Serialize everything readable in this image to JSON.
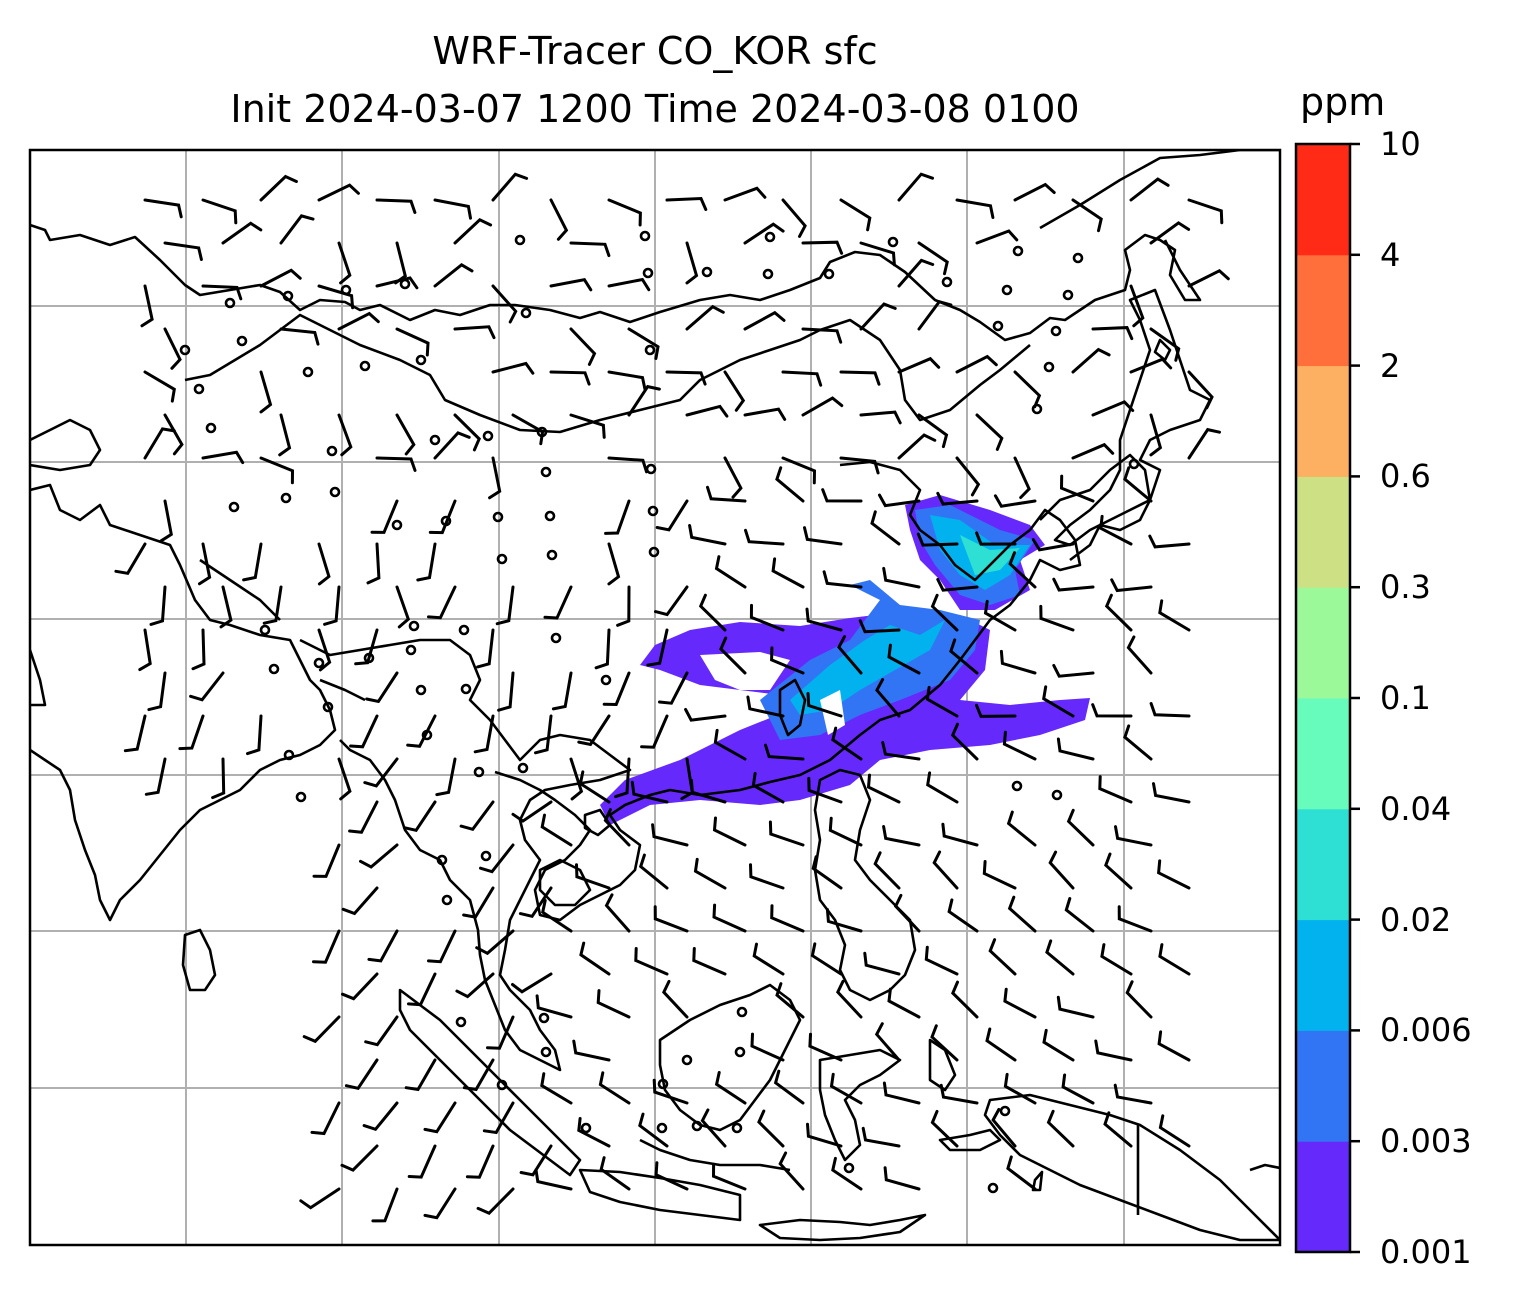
{
  "title": {
    "line1": "WRF-Tracer CO_KOR sfc",
    "line2": "Init 2024-03-07 1200 Time 2024-03-08 0100"
  },
  "colorbar": {
    "unit": "ppm",
    "levels": [
      "0.001",
      "0.003",
      "0.006",
      "0.02",
      "0.04",
      "0.1",
      "0.3",
      "0.6",
      "2",
      "4",
      "10"
    ],
    "colors": [
      "#6529fb",
      "#3275f4",
      "#02b2ee",
      "#2ee0d4",
      "#67fbbc",
      "#9cf99a",
      "#cde184",
      "#fdb062",
      "#ff6f3b",
      "#ff2b16"
    ]
  },
  "map": {
    "gridlines": true,
    "plume_colors": [
      "#6529fb",
      "#3275f4",
      "#02b2ee",
      "#2ee0d4"
    ]
  }
}
